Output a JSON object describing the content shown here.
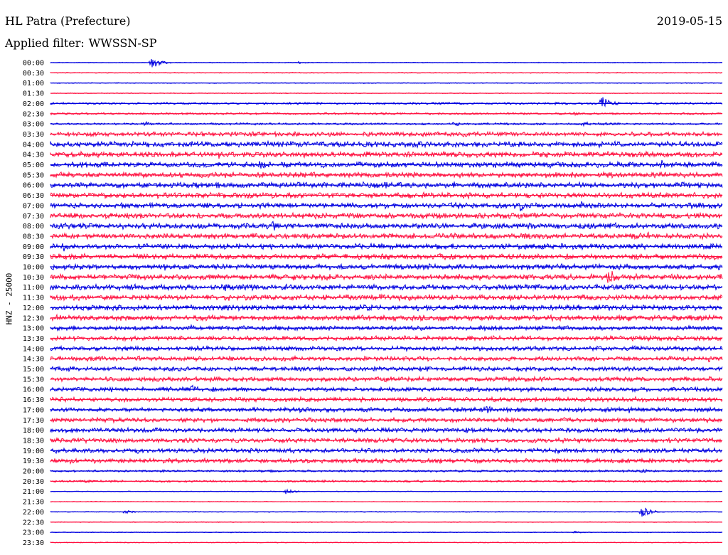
{
  "header": {
    "station": "HL Patra (Prefecture)",
    "date": "2019-05-15",
    "filter_prefix": "Applied filter:",
    "filter_name": "WWSSN-SP"
  },
  "channel_label": "HNZ - 25000",
  "colors": {
    "trace_even": "#0000e0",
    "trace_odd": "#ff1040",
    "background": "#ffffff",
    "text": "#000000"
  },
  "chart_data": {
    "type": "helicorder",
    "rows": [
      {
        "time": "00:00",
        "events": [
          {
            "pos": 0.15,
            "amp": 11
          },
          {
            "pos": 0.37,
            "amp": 3
          }
        ]
      },
      {
        "time": "00:30",
        "events": []
      },
      {
        "time": "01:00",
        "events": []
      },
      {
        "time": "01:30",
        "events": []
      },
      {
        "time": "02:00",
        "events": [
          {
            "pos": 0.82,
            "amp": 16
          },
          {
            "pos": 0.75,
            "amp": 3
          }
        ]
      },
      {
        "time": "02:30",
        "events": [
          {
            "pos": 0.78,
            "amp": 4
          }
        ]
      },
      {
        "time": "03:00",
        "events": [
          {
            "pos": 0.6,
            "amp": 5
          },
          {
            "pos": 0.79,
            "amp": 6
          },
          {
            "pos": 0.14,
            "amp": 4
          }
        ]
      },
      {
        "time": "03:30",
        "events": [
          {
            "pos": 0.6,
            "amp": 4
          },
          {
            "pos": 0.94,
            "amp": 4
          }
        ]
      },
      {
        "time": "04:00",
        "events": [
          {
            "pos": 0.31,
            "amp": 7
          },
          {
            "pos": 0.53,
            "amp": 6
          }
        ]
      },
      {
        "time": "04:30",
        "events": [
          {
            "pos": 0.25,
            "amp": 8
          },
          {
            "pos": 0.31,
            "amp": 10
          }
        ]
      },
      {
        "time": "05:00",
        "events": [
          {
            "pos": 0.1,
            "amp": 7
          },
          {
            "pos": 0.31,
            "amp": 9
          },
          {
            "pos": 0.91,
            "amp": 8
          }
        ]
      },
      {
        "time": "05:30",
        "events": [
          {
            "pos": 0.46,
            "amp": 5
          }
        ]
      },
      {
        "time": "06:00",
        "events": [
          {
            "pos": 0.5,
            "amp": 7
          },
          {
            "pos": 0.6,
            "amp": 6
          }
        ]
      },
      {
        "time": "06:30",
        "events": [
          {
            "pos": 0.4,
            "amp": 5
          }
        ]
      },
      {
        "time": "07:00",
        "events": [
          {
            "pos": 0.7,
            "amp": 10
          },
          {
            "pos": 0.79,
            "amp": 8
          }
        ]
      },
      {
        "time": "07:30",
        "events": [
          {
            "pos": 0.43,
            "amp": 6
          }
        ]
      },
      {
        "time": "08:00",
        "events": [
          {
            "pos": 0.33,
            "amp": 9
          },
          {
            "pos": 0.8,
            "amp": 7
          }
        ]
      },
      {
        "time": "08:30",
        "events": [
          {
            "pos": 0.06,
            "amp": 5
          },
          {
            "pos": 0.41,
            "amp": 6
          },
          {
            "pos": 0.89,
            "amp": 8
          }
        ]
      },
      {
        "time": "09:00",
        "events": [
          {
            "pos": 0.02,
            "amp": 10
          },
          {
            "pos": 0.4,
            "amp": 5
          }
        ]
      },
      {
        "time": "09:30",
        "events": [
          {
            "pos": 0.5,
            "amp": 4
          }
        ]
      },
      {
        "time": "10:00",
        "events": [
          {
            "pos": 0.17,
            "amp": 7
          },
          {
            "pos": 0.26,
            "amp": 6
          }
        ]
      },
      {
        "time": "10:30",
        "events": [
          {
            "pos": 0.36,
            "amp": 8
          },
          {
            "pos": 0.83,
            "amp": 17
          },
          {
            "pos": 0.68,
            "amp": 5
          }
        ]
      },
      {
        "time": "11:00",
        "events": [
          {
            "pos": 0.35,
            "amp": 10
          },
          {
            "pos": 0.26,
            "amp": 8
          },
          {
            "pos": 0.67,
            "amp": 5
          }
        ]
      },
      {
        "time": "11:30",
        "events": [
          {
            "pos": 0.26,
            "amp": 8
          },
          {
            "pos": 0.3,
            "amp": 7
          },
          {
            "pos": 0.43,
            "amp": 6
          },
          {
            "pos": 0.49,
            "amp": 6
          }
        ]
      },
      {
        "time": "12:00",
        "events": [
          {
            "pos": 0.3,
            "amp": 6
          },
          {
            "pos": 0.65,
            "amp": 7
          },
          {
            "pos": 0.81,
            "amp": 5
          }
        ]
      },
      {
        "time": "12:30",
        "events": [
          {
            "pos": 0.42,
            "amp": 5
          },
          {
            "pos": 0.86,
            "amp": 6
          }
        ]
      },
      {
        "time": "13:00",
        "events": [
          {
            "pos": 0.13,
            "amp": 6
          },
          {
            "pos": 0.21,
            "amp": 7
          }
        ]
      },
      {
        "time": "13:30",
        "events": [
          {
            "pos": 0.12,
            "amp": 5
          },
          {
            "pos": 0.89,
            "amp": 6
          }
        ]
      },
      {
        "time": "14:00",
        "events": [
          {
            "pos": 0.14,
            "amp": 5
          },
          {
            "pos": 0.6,
            "amp": 5
          },
          {
            "pos": 0.77,
            "amp": 5
          }
        ]
      },
      {
        "time": "14:30",
        "events": [
          {
            "pos": 0.07,
            "amp": 6
          },
          {
            "pos": 0.46,
            "amp": 5
          },
          {
            "pos": 0.98,
            "amp": 6
          }
        ]
      },
      {
        "time": "15:00",
        "events": [
          {
            "pos": 0.19,
            "amp": 5
          },
          {
            "pos": 0.56,
            "amp": 5
          },
          {
            "pos": 0.94,
            "amp": 5
          }
        ]
      },
      {
        "time": "15:30",
        "events": [
          {
            "pos": 0.5,
            "amp": 4
          }
        ]
      },
      {
        "time": "16:00",
        "events": [
          {
            "pos": 0.09,
            "amp": 5
          },
          {
            "pos": 0.21,
            "amp": 8
          },
          {
            "pos": 0.49,
            "amp": 5
          }
        ]
      },
      {
        "time": "16:30",
        "events": [
          {
            "pos": 0.09,
            "amp": 4
          },
          {
            "pos": 0.87,
            "amp": 5
          }
        ]
      },
      {
        "time": "17:00",
        "events": [
          {
            "pos": 0.37,
            "amp": 6
          },
          {
            "pos": 0.65,
            "amp": 7
          },
          {
            "pos": 0.86,
            "amp": 6
          }
        ]
      },
      {
        "time": "17:30",
        "events": [
          {
            "pos": 0.53,
            "amp": 4
          }
        ]
      },
      {
        "time": "18:00",
        "events": [
          {
            "pos": 0.5,
            "amp": 6
          },
          {
            "pos": 0.62,
            "amp": 8
          },
          {
            "pos": 0.22,
            "amp": 5
          }
        ]
      },
      {
        "time": "18:30",
        "events": [
          {
            "pos": 0.3,
            "amp": 4
          }
        ]
      },
      {
        "time": "19:00",
        "events": [
          {
            "pos": 0.13,
            "amp": 5
          },
          {
            "pos": 0.81,
            "amp": 4
          }
        ]
      },
      {
        "time": "19:30",
        "events": [
          {
            "pos": 0.03,
            "amp": 5
          },
          {
            "pos": 0.45,
            "amp": 9
          },
          {
            "pos": 0.88,
            "amp": 5
          }
        ]
      },
      {
        "time": "20:00",
        "events": [
          {
            "pos": 0.88,
            "amp": 4
          }
        ]
      },
      {
        "time": "20:30",
        "events": [
          {
            "pos": 0.05,
            "amp": 4
          }
        ]
      },
      {
        "time": "21:00",
        "events": [
          {
            "pos": 0.35,
            "amp": 5
          }
        ]
      },
      {
        "time": "21:30",
        "events": []
      },
      {
        "time": "22:00",
        "events": [
          {
            "pos": 0.88,
            "amp": 11
          },
          {
            "pos": 0.11,
            "amp": 4
          }
        ]
      },
      {
        "time": "22:30",
        "events": []
      },
      {
        "time": "23:00",
        "events": [
          {
            "pos": 0.78,
            "amp": 3
          }
        ]
      },
      {
        "time": "23:30",
        "events": []
      }
    ]
  }
}
